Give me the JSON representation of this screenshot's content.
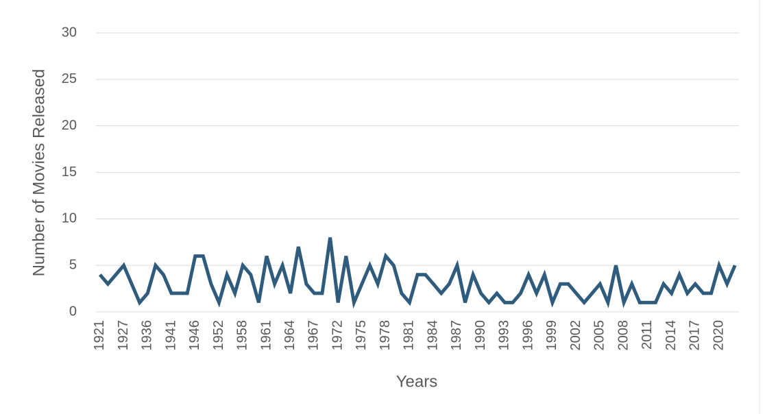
{
  "chart_data": {
    "type": "line",
    "categories": [
      "1921",
      null,
      null,
      "1927",
      null,
      null,
      "1936",
      null,
      null,
      "1941",
      null,
      null,
      "1946",
      null,
      null,
      "1952",
      null,
      null,
      "1958",
      null,
      null,
      "1961",
      null,
      null,
      "1964",
      null,
      null,
      "1967",
      null,
      null,
      "1972",
      null,
      null,
      "1975",
      null,
      null,
      "1978",
      null,
      null,
      "1981",
      null,
      null,
      "1984",
      null,
      null,
      "1987",
      null,
      null,
      "1990",
      null,
      null,
      "1993",
      null,
      null,
      "1996",
      null,
      null,
      "1999",
      null,
      null,
      "2002",
      null,
      null,
      "2005",
      null,
      null,
      "2008",
      null,
      null,
      "2011",
      null,
      null,
      "2014",
      null,
      null,
      "2017",
      null,
      null,
      "2020",
      null,
      null
    ],
    "values": [
      4,
      3,
      4,
      5,
      3,
      1,
      2,
      5,
      4,
      2,
      2,
      2,
      6,
      6,
      3,
      1,
      4,
      2,
      5,
      4,
      1,
      6,
      3,
      5,
      2,
      7,
      3,
      2,
      2,
      8,
      1,
      6,
      1,
      3,
      5,
      3,
      6,
      5,
      2,
      1,
      4,
      4,
      3,
      2,
      3,
      5,
      1,
      4,
      2,
      1,
      2,
      1,
      1,
      2,
      4,
      2,
      4,
      1,
      3,
      3,
      2,
      1,
      2,
      3,
      1,
      5,
      1,
      3,
      1,
      1,
      1,
      3,
      2,
      4,
      2,
      3,
      2,
      2,
      5,
      3,
      5
    ],
    "color": "#2f5b7c",
    "xlabel": "Years",
    "ylabel": "Number of Movies Released",
    "ylim": [
      0,
      30
    ],
    "yticks": [
      0,
      5,
      10,
      15,
      20,
      25,
      30
    ],
    "grid": true
  }
}
